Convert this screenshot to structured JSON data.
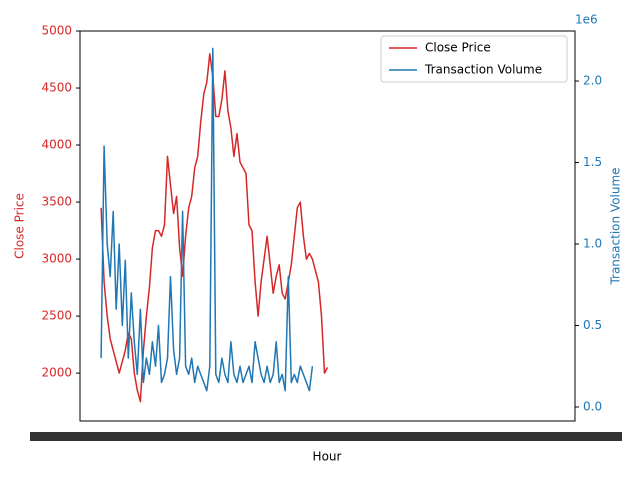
{
  "chart_data": {
    "type": "line",
    "y_label": "Close Price",
    "y2_label": "Transaction Volume",
    "x_label": "Hour",
    "y2_offset": "1e6",
    "x": [
      0,
      1,
      2,
      3,
      4,
      5,
      6,
      7,
      8,
      9,
      10,
      11,
      12,
      13,
      14,
      15,
      16,
      17,
      18,
      19,
      20,
      21,
      22,
      23,
      24,
      25,
      26,
      27,
      28,
      29,
      30,
      31,
      32,
      33,
      34,
      35,
      36,
      37,
      38,
      39,
      40,
      41,
      42,
      43,
      44,
      45,
      46,
      47,
      48,
      49,
      50,
      51,
      52,
      53,
      54,
      55,
      56,
      57,
      58,
      59,
      60,
      61,
      62,
      63,
      64,
      65,
      66,
      67,
      68,
      69,
      70,
      71,
      72,
      73,
      74,
      75
    ],
    "xlim": [
      -7,
      157
    ],
    "ylim": [
      1580,
      5000
    ],
    "yticks": [
      2000,
      2500,
      3000,
      3500,
      4000,
      4500,
      5000
    ],
    "y2lim": [
      -86000,
      2307000
    ],
    "y2ticks": [
      {
        "value": 0,
        "label": "0.0"
      },
      {
        "value": 500000,
        "label": "0.5"
      },
      {
        "value": 1000000,
        "label": "1.0"
      },
      {
        "value": 1500000,
        "label": "1.5"
      },
      {
        "value": 2000000,
        "label": "2.0"
      }
    ],
    "legend": "upper right",
    "series": [
      {
        "name": "Close Price",
        "color": "#d62728",
        "axis": "y",
        "values": [
          3450,
          2800,
          2500,
          2300,
          2200,
          2100,
          2000,
          2100,
          2200,
          2350,
          2300,
          2000,
          1850,
          1750,
          2200,
          2500,
          2750,
          3100,
          3250,
          3250,
          3200,
          3300,
          3900,
          3650,
          3400,
          3550,
          3100,
          2850,
          3200,
          3450,
          3550,
          3800,
          3900,
          4200,
          4450,
          4550,
          4800,
          4600,
          4250,
          4250,
          4400,
          4650,
          4300,
          4150,
          3900,
          4100,
          3850,
          3800,
          3750,
          3300,
          3250,
          2800,
          2500,
          2800,
          3000,
          3200,
          2950,
          2700,
          2850,
          2950,
          2700,
          2650,
          2800,
          2950,
          3200,
          3450,
          3500,
          3200,
          3000,
          3050,
          3000,
          2900,
          2800,
          2500,
          2000,
          2050
        ]
      },
      {
        "name": "Transaction Volume",
        "color": "#1f77b4",
        "axis": "y2",
        "values": [
          300000,
          1600000,
          1000000,
          800000,
          1200000,
          600000,
          1000000,
          500000,
          900000,
          300000,
          700000,
          400000,
          200000,
          600000,
          150000,
          300000,
          200000,
          400000,
          250000,
          500000,
          150000,
          200000,
          300000,
          800000,
          350000,
          200000,
          300000,
          1200000,
          250000,
          200000,
          300000,
          150000,
          250000,
          200000,
          150000,
          100000,
          250000,
          2200000,
          200000,
          150000,
          300000,
          200000,
          150000,
          400000,
          200000,
          150000,
          250000,
          150000,
          200000,
          250000,
          150000,
          400000,
          300000,
          200000,
          150000,
          250000,
          150000,
          200000,
          400000,
          150000,
          200000,
          100000,
          800000,
          150000,
          200000,
          150000,
          250000,
          200000,
          150000,
          100000,
          250000,
          null,
          null,
          null,
          null,
          null
        ]
      }
    ]
  }
}
